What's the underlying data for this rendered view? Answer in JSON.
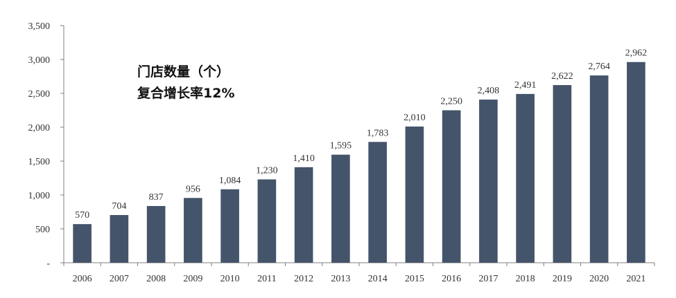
{
  "chart_data": {
    "type": "bar",
    "categories": [
      "2006",
      "2007",
      "2008",
      "2009",
      "2010",
      "2011",
      "2012",
      "2013",
      "2014",
      "2015",
      "2016",
      "2017",
      "2018",
      "2019",
      "2020",
      "2021"
    ],
    "values": [
      570,
      704,
      837,
      956,
      1084,
      1230,
      1410,
      1595,
      1783,
      2010,
      2250,
      2408,
      2491,
      2622,
      2764,
      2962
    ],
    "data_labels": [
      "570",
      "704",
      "837",
      "956",
      "1,084",
      "1,230",
      "1,410",
      "1,595",
      "1,783",
      "2,010",
      "2,250",
      "2,408",
      "2,491",
      "2,622",
      "2,764",
      "2,962"
    ],
    "yticks": [
      0,
      500,
      1000,
      1500,
      2000,
      2500,
      3000,
      3500
    ],
    "ytick_labels": [
      "-",
      "500",
      "1,000",
      "1,500",
      "2,000",
      "2,500",
      "3,000",
      "3,500"
    ],
    "ylim": [
      0,
      3500
    ],
    "grid": false,
    "legend": "none",
    "bar_color": "#44546a",
    "annotations": [
      "门店数量（个）",
      "复合增长率12%"
    ]
  }
}
